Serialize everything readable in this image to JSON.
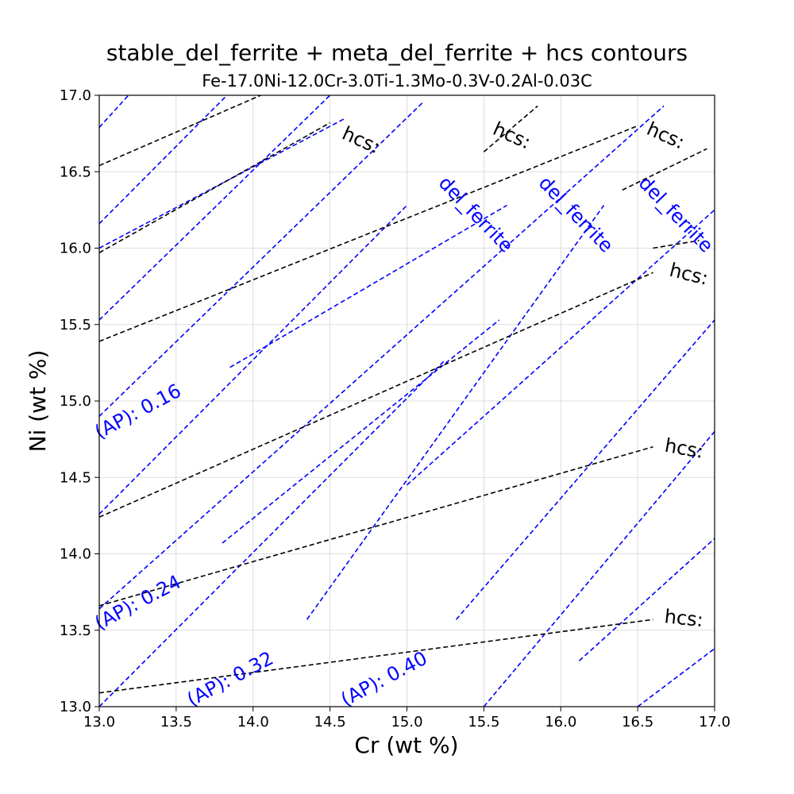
{
  "chart_data": {
    "type": "line",
    "title": "stable_del_ferrite + meta_del_ferrite + hcs contours",
    "subtitle": "Fe-17.0Ni-12.0Cr-3.0Ti-1.3Mo-0.3V-0.2Al-0.03C",
    "xlabel": "Cr (wt %)",
    "ylabel": "Ni (wt %)",
    "xlim": [
      13.0,
      17.0
    ],
    "ylim": [
      13.0,
      17.0
    ],
    "grid": true,
    "x_ticks": [
      "13.0",
      "13.5",
      "14.0",
      "14.5",
      "15.0",
      "15.5",
      "16.0",
      "16.5",
      "17.0"
    ],
    "y_ticks": [
      "13.0",
      "13.5",
      "14.0",
      "14.5",
      "15.0",
      "15.5",
      "16.0",
      "16.5",
      "17.0"
    ],
    "colors": {
      "blue": "#0000ff",
      "black": "#000000",
      "grid": "#d3d3d3"
    },
    "series": [
      {
        "color": "blue",
        "x": [
          13.0,
          13.19
        ],
        "y": [
          16.79,
          17.0
        ]
      },
      {
        "color": "blue",
        "x": [
          13.0,
          13.83
        ],
        "y": [
          16.16,
          17.0
        ]
      },
      {
        "color": "blue",
        "x": [
          13.0,
          14.5
        ],
        "y": [
          15.53,
          17.0
        ]
      },
      {
        "color": "blue",
        "x": [
          13.0,
          15.1
        ],
        "y": [
          14.9,
          16.95
        ]
      },
      {
        "color": "blue",
        "x": [
          13.0,
          15.0
        ],
        "y": [
          14.26,
          16.28
        ]
      },
      {
        "color": "blue",
        "x": [
          13.0,
          16.67
        ],
        "y": [
          13.64,
          16.93
        ]
      },
      {
        "color": "blue",
        "x": [
          13.0,
          15.25
        ],
        "y": [
          13.0,
          15.27
        ]
      },
      {
        "color": "blue",
        "x": [
          14.35,
          16.28
        ],
        "y": [
          13.57,
          16.28
        ]
      },
      {
        "color": "blue",
        "x": [
          15.32,
          17.0
        ],
        "y": [
          13.57,
          15.53
        ]
      },
      {
        "color": "blue",
        "x": [
          15.5,
          17.0
        ],
        "y": [
          13.0,
          14.8
        ]
      },
      {
        "color": "blue",
        "x": [
          16.5,
          17.0
        ],
        "y": [
          13.0,
          13.38
        ]
      },
      {
        "color": "blue",
        "x": [
          16.12,
          17.0
        ],
        "y": [
          13.3,
          14.1
        ]
      },
      {
        "color": "blue",
        "x": [
          15.0,
          17.0
        ],
        "y": [
          14.45,
          16.25
        ]
      },
      {
        "color": "blue",
        "x": [
          13.0,
          14.6
        ],
        "y": [
          16.0,
          16.85
        ]
      },
      {
        "color": "blue",
        "x": [
          13.85,
          15.65
        ],
        "y": [
          15.22,
          16.28
        ]
      },
      {
        "color": "blue",
        "x": [
          13.8,
          15.6
        ],
        "y": [
          14.07,
          15.53
        ]
      },
      {
        "color": "black",
        "x": [
          13.0,
          14.05
        ],
        "y": [
          16.54,
          17.0
        ]
      },
      {
        "color": "black",
        "x": [
          13.0,
          14.5
        ],
        "y": [
          15.97,
          16.82
        ]
      },
      {
        "color": "black",
        "x": [
          13.0,
          16.5
        ],
        "y": [
          15.39,
          16.8
        ]
      },
      {
        "color": "black",
        "x": [
          13.0,
          16.6
        ],
        "y": [
          14.24,
          15.84
        ]
      },
      {
        "color": "black",
        "x": [
          13.0,
          16.6
        ],
        "y": [
          13.66,
          14.7
        ]
      },
      {
        "color": "black",
        "x": [
          13.0,
          16.6
        ],
        "y": [
          13.09,
          13.57
        ]
      },
      {
        "color": "black",
        "x": [
          15.5,
          15.85
        ],
        "y": [
          16.63,
          16.93
        ]
      },
      {
        "color": "black",
        "x": [
          16.6,
          16.9
        ],
        "y": [
          16.0,
          16.05
        ]
      },
      {
        "color": "black",
        "x": [
          16.4,
          16.95
        ],
        "y": [
          16.38,
          16.65
        ]
      }
    ],
    "annotations": [
      {
        "text": "(AP): 0.16",
        "x": 13.0,
        "y": 14.75,
        "angle": 28,
        "color": "blue"
      },
      {
        "text": "(AP): 0.24",
        "x": 13.0,
        "y": 13.5,
        "angle": 28,
        "color": "blue"
      },
      {
        "text": "(AP): 0.32",
        "x": 13.6,
        "y": 13.0,
        "angle": 28,
        "color": "blue"
      },
      {
        "text": "(AP): 0.40",
        "x": 14.6,
        "y": 13.0,
        "angle": 28,
        "color": "blue"
      },
      {
        "text": "del_ferrite",
        "x": 15.2,
        "y": 16.42,
        "angle": -46,
        "color": "blue"
      },
      {
        "text": "del_ferrite",
        "x": 15.85,
        "y": 16.42,
        "angle": -46,
        "color": "blue"
      },
      {
        "text": "del_ferrite",
        "x": 16.5,
        "y": 16.42,
        "angle": -46,
        "color": "blue"
      },
      {
        "text": "hcs:",
        "x": 14.57,
        "y": 16.72,
        "angle": -24,
        "color": "black"
      },
      {
        "text": "hcs:",
        "x": 15.55,
        "y": 16.75,
        "angle": -24,
        "color": "black"
      },
      {
        "text": "hcs:",
        "x": 16.55,
        "y": 16.75,
        "angle": -24,
        "color": "black"
      },
      {
        "text": "hcs:",
        "x": 16.7,
        "y": 15.82,
        "angle": -14,
        "color": "black"
      },
      {
        "text": "hcs:",
        "x": 16.67,
        "y": 14.67,
        "angle": -10,
        "color": "black"
      },
      {
        "text": "hcs:",
        "x": 16.67,
        "y": 13.55,
        "angle": -6,
        "color": "black"
      }
    ]
  }
}
